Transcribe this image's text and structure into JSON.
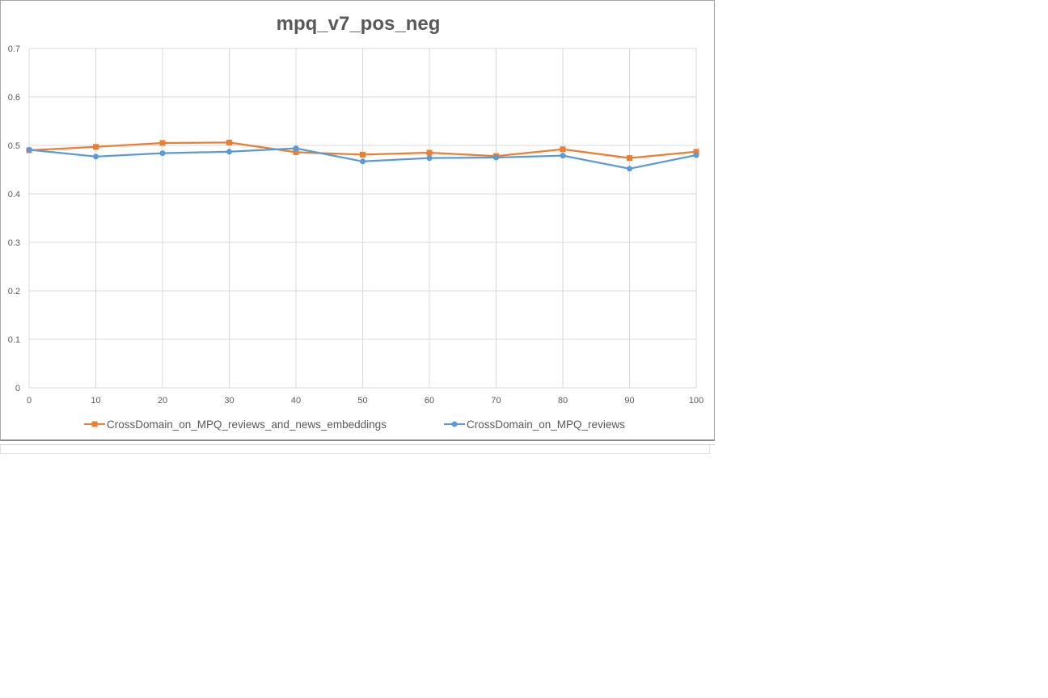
{
  "chart_data": {
    "type": "line",
    "title": "mpq_v7_pos_neg",
    "xlabel": "",
    "ylabel": "",
    "x": [
      0,
      10,
      20,
      30,
      40,
      50,
      60,
      70,
      80,
      90,
      100
    ],
    "xlim": [
      0,
      100
    ],
    "ylim": [
      0,
      0.7
    ],
    "x_ticks": [
      "0",
      "10",
      "20",
      "30",
      "40",
      "50",
      "60",
      "70",
      "80",
      "90",
      "100"
    ],
    "y_ticks": [
      "0",
      "0.1",
      "0.2",
      "0.3",
      "0.4",
      "0.5",
      "0.6",
      "0.7"
    ],
    "grid": true,
    "legend_position": "bottom",
    "series": [
      {
        "name": "CrossDomain_on_MPQ_reviews_and_news_embeddings",
        "color": "#ed7d31",
        "marker": "square",
        "values": [
          0.49,
          0.497,
          0.505,
          0.506,
          0.486,
          0.481,
          0.485,
          0.478,
          0.492,
          0.474,
          0.487
        ]
      },
      {
        "name": "CrossDomain_on_MPQ_reviews",
        "color": "#5b9bd5",
        "marker": "circle",
        "values": [
          0.491,
          0.477,
          0.484,
          0.487,
          0.494,
          0.467,
          0.474,
          0.475,
          0.479,
          0.452,
          0.48
        ]
      }
    ]
  }
}
